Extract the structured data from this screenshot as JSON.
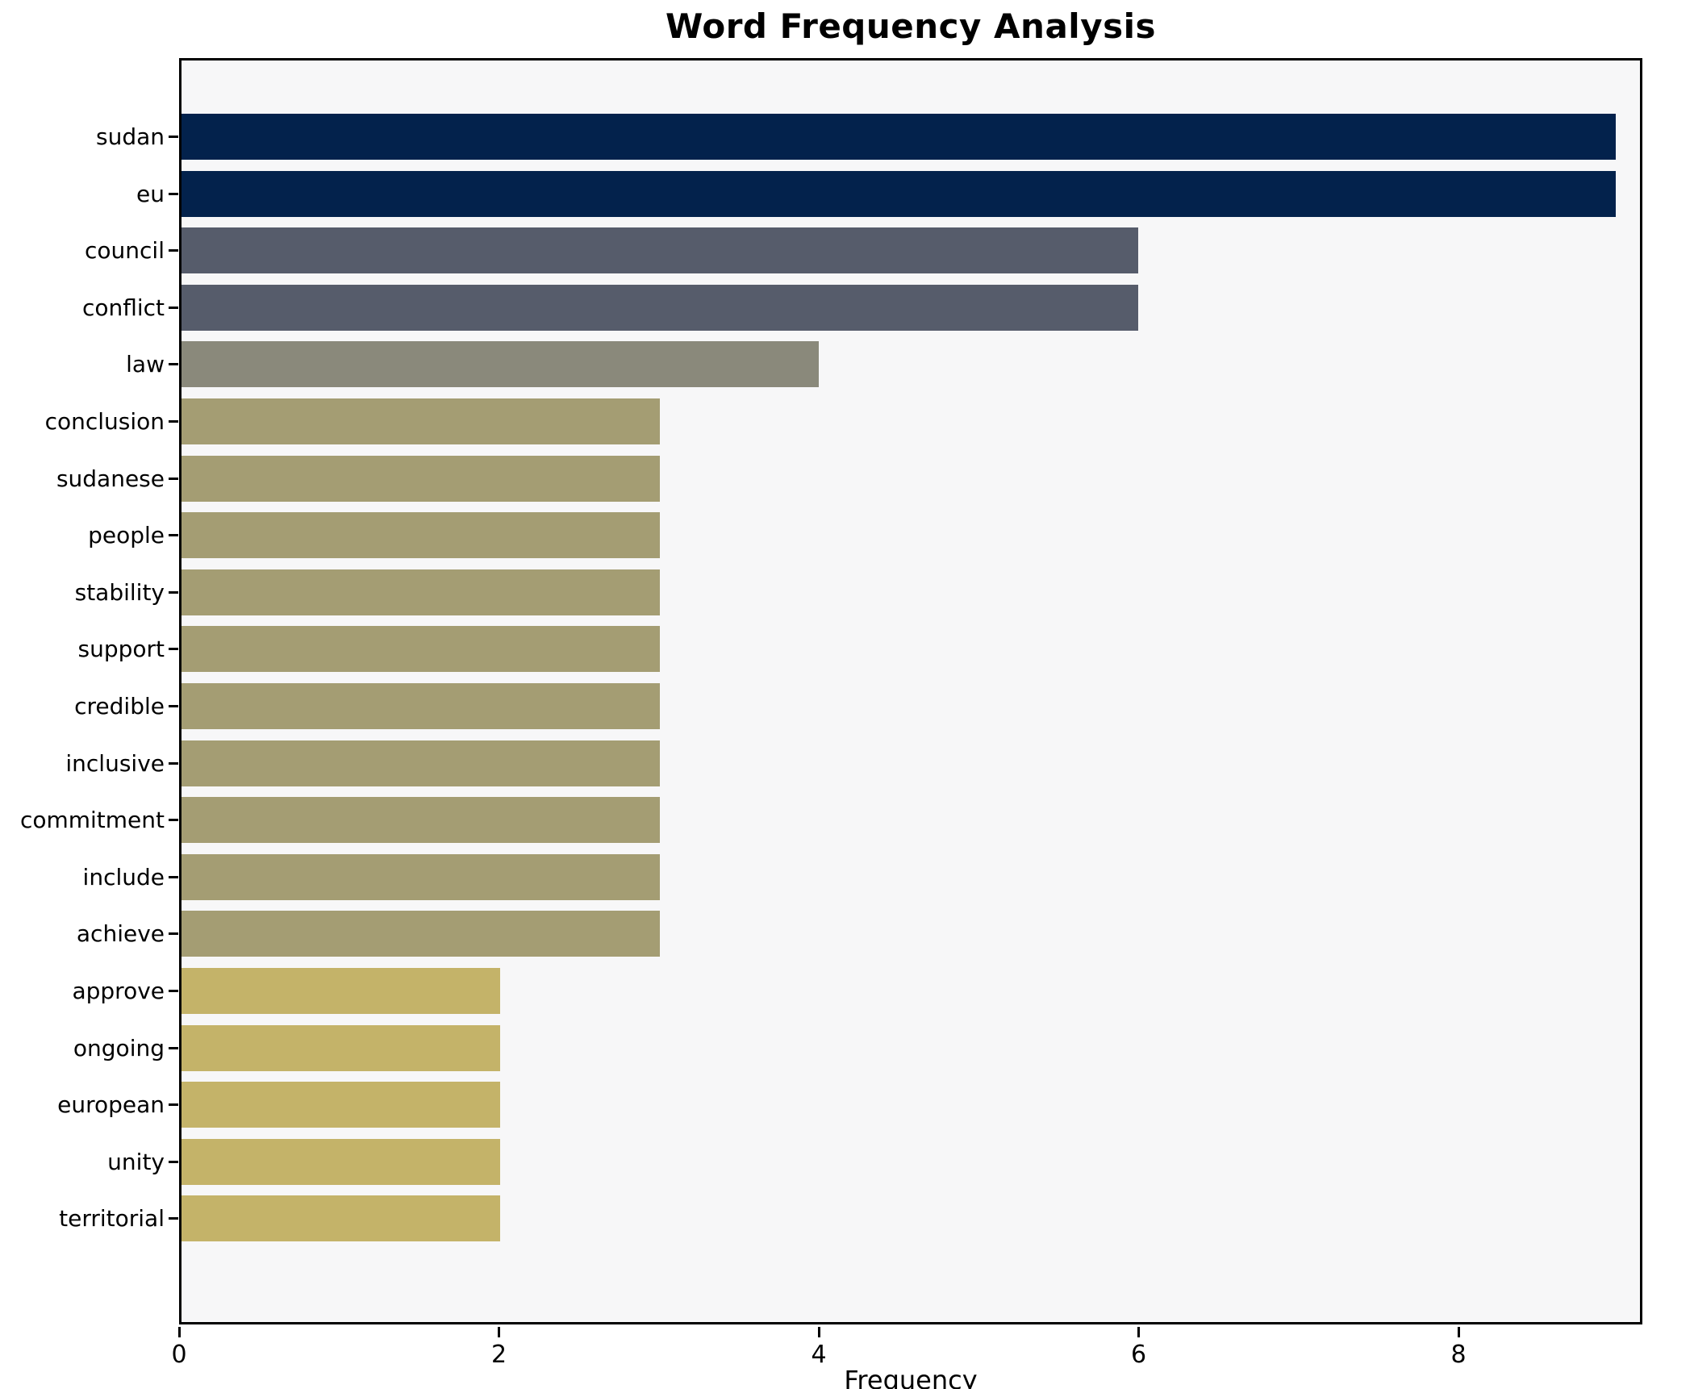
{
  "chart_data": {
    "type": "bar",
    "orientation": "horizontal",
    "title": "Word Frequency Analysis",
    "xlabel": "Frequency",
    "ylabel": "",
    "categories": [
      "sudan",
      "eu",
      "council",
      "conflict",
      "law",
      "conclusion",
      "sudanese",
      "people",
      "stability",
      "support",
      "credible",
      "inclusive",
      "commitment",
      "include",
      "achieve",
      "approve",
      "ongoing",
      "european",
      "unity",
      "territorial"
    ],
    "values": [
      9,
      9,
      6,
      6,
      4,
      3,
      3,
      3,
      3,
      3,
      3,
      3,
      3,
      3,
      3,
      2,
      2,
      2,
      2,
      2
    ],
    "bar_colors": [
      "#03224c",
      "#03224c",
      "#565c6b",
      "#565c6b",
      "#8a897b",
      "#a49d73",
      "#a49d73",
      "#a49d73",
      "#a49d73",
      "#a49d73",
      "#a49d73",
      "#a49d73",
      "#a49d73",
      "#a49d73",
      "#a49d73",
      "#c4b369",
      "#c4b369",
      "#c4b369",
      "#c4b369",
      "#c4b369"
    ],
    "xticks": [
      "0",
      "2",
      "4",
      "6",
      "8"
    ],
    "xtick_values": [
      0,
      2,
      4,
      6,
      8
    ],
    "xlim": [
      0,
      9.15
    ],
    "grid": false,
    "legend": "none",
    "plot_background": "#f7f7f8",
    "axis_color": "#000000"
  }
}
